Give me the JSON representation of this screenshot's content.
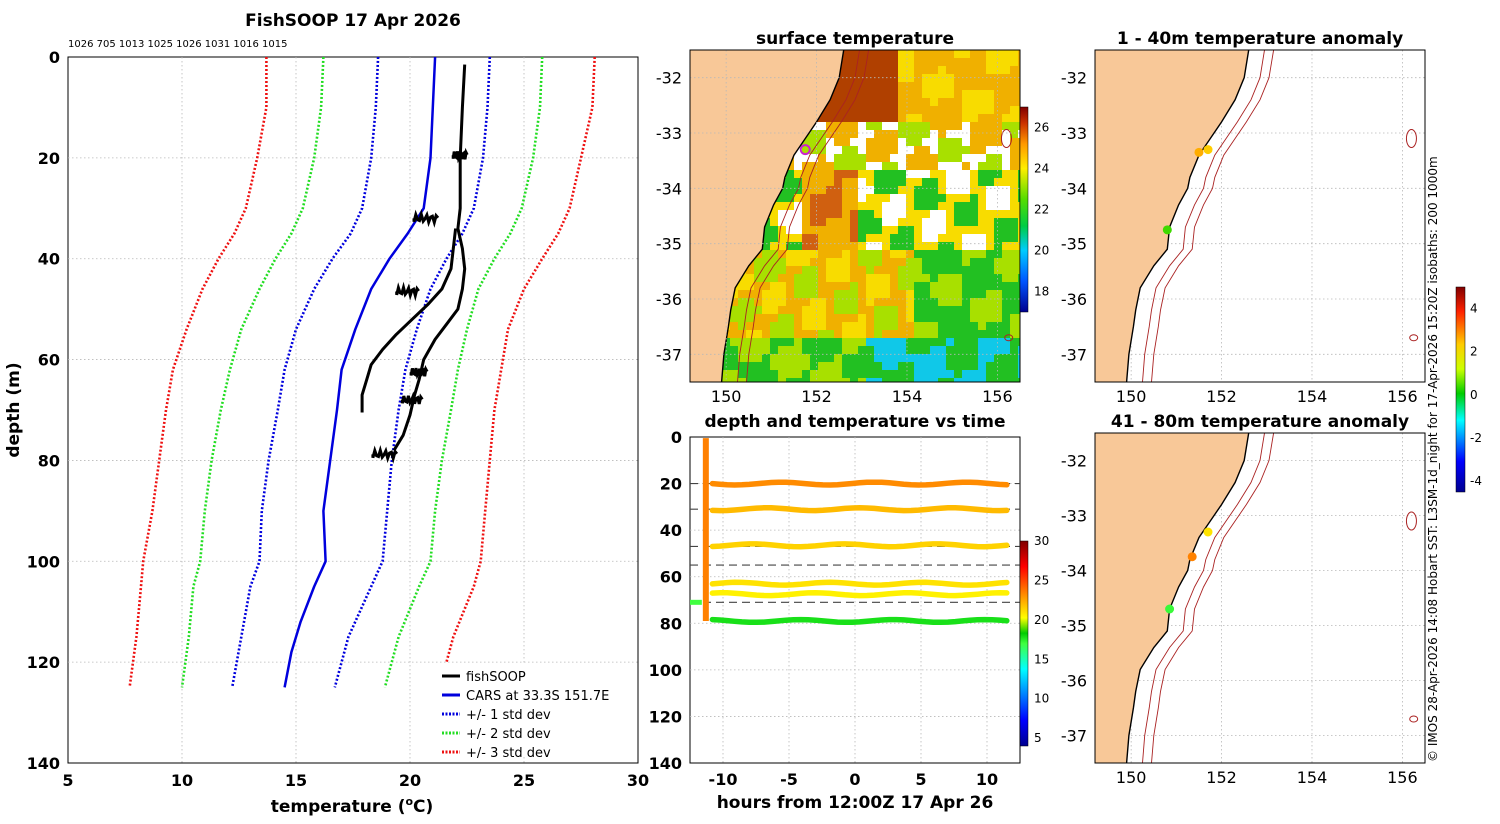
{
  "chart_data": [
    {
      "type": "line",
      "title": "FishSOOP 17 Apr 2026",
      "top_labels": "1026 705 1013 1025 1026 1031 1016 1015",
      "xlabel": "temperature (°C)",
      "xlabel_main": "temperature (",
      "xlabel_sup": "o",
      "xlabel_end": "C)",
      "ylabel": "depth (m)",
      "xlim": [
        5,
        30
      ],
      "ylim": [
        0,
        140
      ],
      "xticks": [
        "5",
        "10",
        "15",
        "20",
        "25",
        "30"
      ],
      "yticks": [
        "0",
        "20",
        "40",
        "60",
        "80",
        "100",
        "120",
        "140"
      ],
      "series": [
        {
          "name": "CARS at 33.3S 151.7E",
          "color": "#0000dd",
          "style": "solid",
          "points": [
            [
              21.1,
              0
            ],
            [
              21.0,
              10
            ],
            [
              20.9,
              20
            ],
            [
              20.6,
              30
            ],
            [
              19.9,
              35
            ],
            [
              19.1,
              40
            ],
            [
              18.3,
              46
            ],
            [
              17.6,
              54
            ],
            [
              17.0,
              62
            ],
            [
              16.8,
              70
            ],
            [
              16.5,
              80
            ],
            [
              16.2,
              90
            ],
            [
              16.3,
              100
            ],
            [
              15.8,
              105
            ],
            [
              15.2,
              112
            ],
            [
              14.8,
              118
            ],
            [
              14.5,
              125
            ]
          ]
        },
        {
          "name": "+/- 1 std dev",
          "color": "#0000dd",
          "style": "dotted",
          "points": [
            [
              18.6,
              0
            ],
            [
              18.5,
              10
            ],
            [
              18.3,
              20
            ],
            [
              17.9,
              30
            ],
            [
              17.4,
              35
            ],
            [
              16.6,
              40
            ],
            [
              15.8,
              46
            ],
            [
              15.0,
              54
            ],
            [
              14.5,
              62
            ],
            [
              14.2,
              70
            ],
            [
              13.8,
              80
            ],
            [
              13.5,
              90
            ],
            [
              13.4,
              100
            ],
            [
              13.0,
              105
            ],
            [
              12.6,
              115
            ],
            [
              12.2,
              125
            ]
          ]
        },
        {
          "name": "+/- 1 std dev",
          "color": "#0000dd",
          "style": "dotted",
          "points": [
            [
              23.5,
              0
            ],
            [
              23.4,
              10
            ],
            [
              23.2,
              20
            ],
            [
              22.8,
              30
            ],
            [
              22.3,
              35
            ],
            [
              21.6,
              40
            ],
            [
              20.9,
              46
            ],
            [
              20.3,
              54
            ],
            [
              19.8,
              62
            ],
            [
              19.5,
              70
            ],
            [
              19.2,
              80
            ],
            [
              19.0,
              90
            ],
            [
              18.8,
              100
            ],
            [
              18.3,
              105
            ],
            [
              17.3,
              115
            ],
            [
              16.7,
              125
            ]
          ]
        },
        {
          "name": "+/- 2 std dev",
          "color": "#22dd22",
          "style": "dotted",
          "points": [
            [
              16.2,
              0
            ],
            [
              16.1,
              10
            ],
            [
              15.8,
              20
            ],
            [
              15.3,
              30
            ],
            [
              14.8,
              35
            ],
            [
              14.1,
              40
            ],
            [
              13.4,
              46
            ],
            [
              12.6,
              54
            ],
            [
              12.1,
              62
            ],
            [
              11.7,
              70
            ],
            [
              11.3,
              80
            ],
            [
              11.0,
              90
            ],
            [
              10.8,
              100
            ],
            [
              10.5,
              105
            ],
            [
              10.3,
              115
            ],
            [
              10.0,
              125
            ]
          ]
        },
        {
          "name": "+/- 2 std dev",
          "color": "#22dd22",
          "style": "dotted",
          "points": [
            [
              25.8,
              0
            ],
            [
              25.7,
              10
            ],
            [
              25.4,
              20
            ],
            [
              24.9,
              30
            ],
            [
              24.4,
              35
            ],
            [
              23.7,
              40
            ],
            [
              23.0,
              46
            ],
            [
              22.5,
              54
            ],
            [
              22.1,
              62
            ],
            [
              21.8,
              70
            ],
            [
              21.4,
              80
            ],
            [
              21.1,
              90
            ],
            [
              20.9,
              100
            ],
            [
              20.4,
              105
            ],
            [
              19.5,
              115
            ],
            [
              18.9,
              125
            ]
          ]
        },
        {
          "name": "+/- 3 std dev",
          "color": "#ee1111",
          "style": "dotted",
          "points": [
            [
              13.7,
              0
            ],
            [
              13.7,
              10
            ],
            [
              13.3,
              20
            ],
            [
              12.8,
              30
            ],
            [
              12.3,
              35
            ],
            [
              11.6,
              40
            ],
            [
              10.9,
              46
            ],
            [
              10.2,
              54
            ],
            [
              9.6,
              62
            ],
            [
              9.3,
              70
            ],
            [
              9.0,
              80
            ],
            [
              8.7,
              90
            ],
            [
              8.3,
              100
            ],
            [
              8.2,
              105
            ],
            [
              8.0,
              115
            ],
            [
              7.7,
              125
            ]
          ]
        },
        {
          "name": "+/- 3 std dev",
          "color": "#ee1111",
          "style": "dotted",
          "points": [
            [
              28.1,
              0
            ],
            [
              28.0,
              10
            ],
            [
              27.5,
              20
            ],
            [
              27.0,
              30
            ],
            [
              26.5,
              35
            ],
            [
              25.8,
              40
            ],
            [
              25.0,
              46
            ],
            [
              24.3,
              54
            ],
            [
              24.0,
              62
            ],
            [
              23.7,
              70
            ],
            [
              23.5,
              80
            ],
            [
              23.3,
              90
            ],
            [
              23.1,
              100
            ],
            [
              22.8,
              105
            ],
            [
              21.9,
              115
            ],
            [
              21.3,
              125
            ]
          ]
        },
        {
          "name": "fishSOOP",
          "color": "#000000",
          "style": "solid",
          "points": [
            [
              22.4,
              1.5
            ],
            [
              22.3,
              10
            ],
            [
              22.2,
              20
            ],
            [
              22.2,
              30
            ],
            [
              22.1,
              34
            ],
            [
              22.3,
              38
            ],
            [
              22.4,
              42
            ],
            [
              22.3,
              46
            ],
            [
              22.1,
              50
            ],
            [
              21.6,
              53
            ],
            [
              21.1,
              56
            ],
            [
              20.6,
              60
            ],
            [
              20.4,
              64
            ],
            [
              20.2,
              67
            ],
            [
              20.0,
              71
            ],
            [
              19.7,
              75
            ],
            [
              19.3,
              78
            ]
          ]
        },
        {
          "name": "fishSOOP",
          "color": "#000000",
          "style": "solid",
          "points": [
            [
              22.0,
              34
            ],
            [
              21.9,
              38
            ],
            [
              21.8,
              42
            ],
            [
              21.4,
              46
            ],
            [
              20.8,
              49
            ],
            [
              20.1,
              52
            ],
            [
              19.4,
              55
            ],
            [
              18.8,
              58
            ],
            [
              18.3,
              61
            ],
            [
              18.1,
              64
            ],
            [
              17.9,
              67
            ],
            [
              17.9,
              70.5
            ]
          ]
        }
      ],
      "legend": [
        {
          "label": "fishSOOP",
          "color": "#000000",
          "style": "solid"
        },
        {
          "label": "CARS at 33.3S 151.7E",
          "color": "#0000dd",
          "style": "solid"
        },
        {
          "label": "+/- 1 std dev",
          "color": "#0000dd",
          "style": "dotted"
        },
        {
          "label": "+/- 2 std dev",
          "color": "#22dd22",
          "style": "dotted"
        },
        {
          "label": "+/- 3 std dev",
          "color": "#ee1111",
          "style": "dotted"
        }
      ]
    },
    {
      "type": "heatmap",
      "title": "surface temperature",
      "xlim": [
        149.2,
        156.5
      ],
      "ylim": [
        -37.5,
        -31.5
      ],
      "xticks": [
        "150",
        "152",
        "154",
        "156"
      ],
      "yticks": [
        "-32",
        "-33",
        "-34",
        "-35",
        "-36",
        "-37"
      ],
      "colorbar": {
        "min": 17,
        "max": 27,
        "ticks": [
          "18",
          "20",
          "22",
          "24",
          "26"
        ]
      },
      "markers": [
        {
          "lon": 151.75,
          "lat": -33.3,
          "color": "#cc22cc"
        }
      ]
    },
    {
      "type": "scatter",
      "title": "depth and temperature vs time",
      "xlabel": "hours from 12:00Z 17 Apr 26",
      "xlim": [
        -12.5,
        12.5
      ],
      "ylim": [
        0,
        140
      ],
      "xticks": [
        "-10",
        "-5",
        "0",
        "5",
        "10"
      ],
      "yticks": [
        "0",
        "20",
        "40",
        "60",
        "80",
        "100",
        "120",
        "140"
      ],
      "dashed_depths": [
        20,
        31,
        47,
        55,
        71
      ],
      "colorbar": {
        "min": 4,
        "max": 30,
        "ticks": [
          "5",
          "10",
          "15",
          "20",
          "25",
          "30"
        ]
      },
      "tracks": [
        {
          "depth": 20,
          "temp": 23.2
        },
        {
          "depth": 31,
          "temp": 22.0
        },
        {
          "depth": 46.5,
          "temp": 21.4
        },
        {
          "depth": 63,
          "temp": 21.0
        },
        {
          "depth": 67.5,
          "temp": 20.6
        },
        {
          "depth": 79,
          "temp": 17.8
        }
      ],
      "descent": {
        "hour": -11.3,
        "temp": 23.5
      },
      "initial_step": {
        "depth": 71,
        "temp": 17.0
      }
    },
    {
      "type": "scatter",
      "title": "1 - 40m temperature anomaly",
      "xlim": [
        149.2,
        156.5
      ],
      "ylim": [
        -37.5,
        -31.5
      ],
      "xticks": [
        "150",
        "152",
        "154",
        "156"
      ],
      "yticks": [
        "-32",
        "-33",
        "-34",
        "-35",
        "-36",
        "-37"
      ],
      "points": [
        {
          "lon": 151.5,
          "lat": -33.35,
          "anom": 2.2
        },
        {
          "lon": 151.7,
          "lat": -33.3,
          "anom": 1.9
        },
        {
          "lon": 150.8,
          "lat": -34.75,
          "anom": 0.9
        }
      ]
    },
    {
      "type": "scatter",
      "title": "41 - 80m temperature anomaly",
      "xlim": [
        149.2,
        156.5
      ],
      "ylim": [
        -37.5,
        -31.5
      ],
      "xticks": [
        "150",
        "152",
        "154",
        "156"
      ],
      "yticks": [
        "-32",
        "-33",
        "-34",
        "-35",
        "-36",
        "-37"
      ],
      "points": [
        {
          "lon": 151.7,
          "lat": -33.3,
          "anom": 1.7
        },
        {
          "lon": 151.35,
          "lat": -33.75,
          "anom": 2.6
        },
        {
          "lon": 150.85,
          "lat": -34.7,
          "anom": 0.3
        }
      ],
      "colorbar": {
        "min": -4.5,
        "max": 5,
        "ticks": [
          "4",
          "2",
          "0",
          "-2",
          "-4"
        ]
      }
    }
  ],
  "footer_text": "© IMOS 28-Apr-2026 14:08 Hobart SST: L3SM-1d_night for 17-Apr-2026 15:20Z isobaths: 200  1000m"
}
